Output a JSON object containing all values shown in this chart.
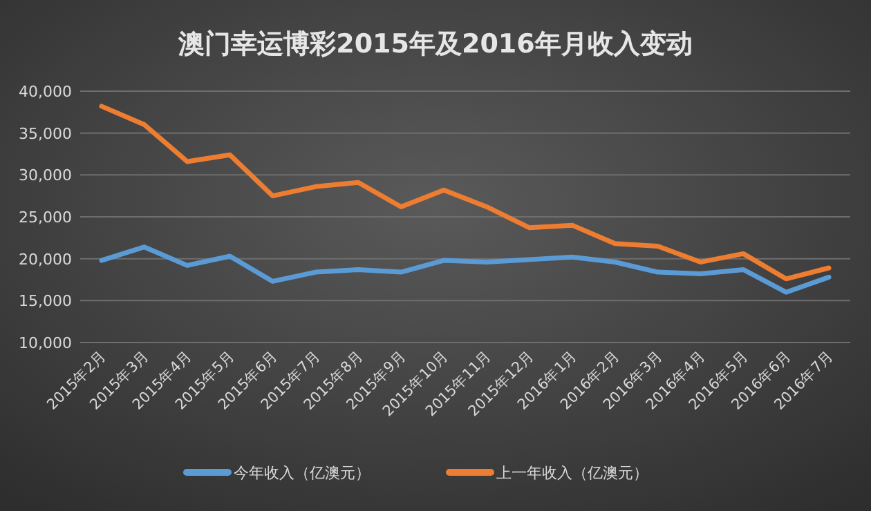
{
  "chart_data": {
    "type": "line",
    "title": "澳门幸运博彩2015年及2016年月收入变动",
    "categories": [
      "2015年2月",
      "2015年3月",
      "2015年4月",
      "2015年5月",
      "2015年6月",
      "2015年7月",
      "2015年8月",
      "2015年9月",
      "2015年10月",
      "2015年11月",
      "2015年12月",
      "2016年1月",
      "2016年2月",
      "2016年3月",
      "2016年4月",
      "2016年5月",
      "2016年6月",
      "2016年7月"
    ],
    "series": [
      {
        "name": "今年收入（亿澳元）",
        "color": "#5b9bd5",
        "values": [
          19800,
          21400,
          19200,
          20300,
          17300,
          18400,
          18700,
          18400,
          19800,
          19600,
          19900,
          20200,
          19600,
          18400,
          18200,
          18700,
          16000,
          17800
        ]
      },
      {
        "name": "上一年收入（亿澳元）",
        "color": "#ed7d31",
        "values": [
          38200,
          36000,
          31600,
          32400,
          27500,
          28600,
          29100,
          26200,
          28200,
          26200,
          23700,
          24000,
          21800,
          21500,
          19600,
          20600,
          17600,
          18900
        ]
      }
    ],
    "ylim": [
      10000,
      40000
    ],
    "yticks": [
      {
        "value": 10000,
        "label": "10,000"
      },
      {
        "value": 15000,
        "label": "15,000"
      },
      {
        "value": 20000,
        "label": "20,000"
      },
      {
        "value": 25000,
        "label": "25,000"
      },
      {
        "value": 30000,
        "label": "30,000"
      },
      {
        "value": 35000,
        "label": "35,000"
      },
      {
        "value": 40000,
        "label": "40,000"
      }
    ],
    "grid": "y",
    "legend": "bottom"
  }
}
